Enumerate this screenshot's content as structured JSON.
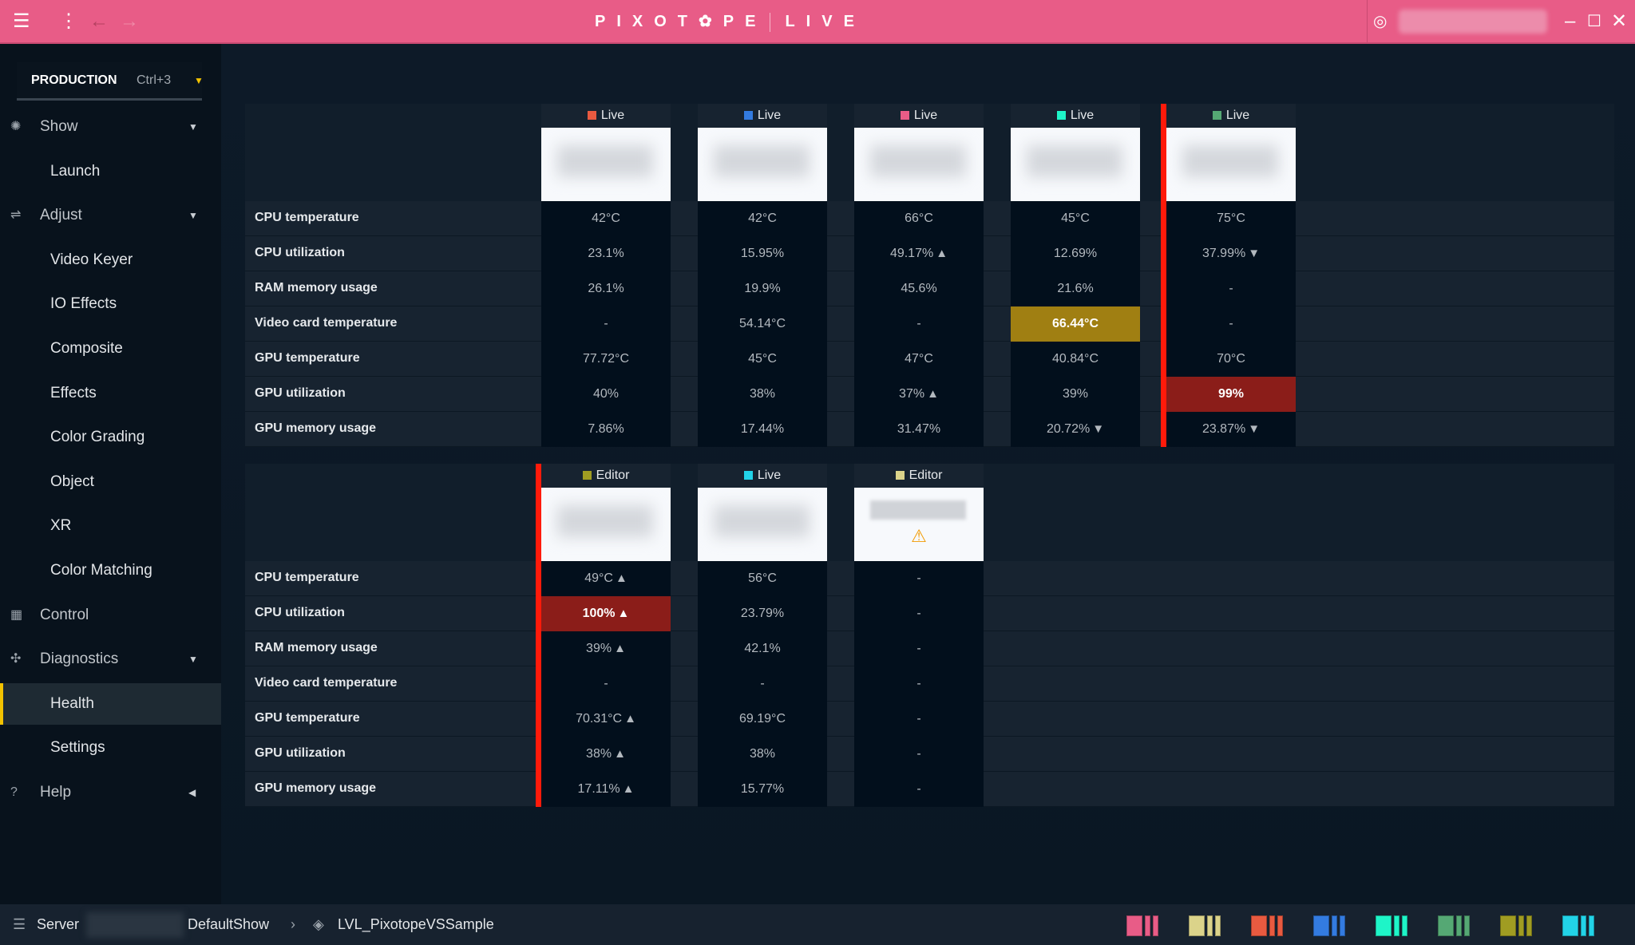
{
  "app": {
    "brand_left": "PIXOT",
    "brand_right": "PE",
    "brand_mode": "LIVE",
    "color": "#e85c87"
  },
  "workspace": {
    "label": "PRODUCTION",
    "shortcut": "Ctrl+3"
  },
  "sidebar": [
    {
      "label": "Show",
      "type": "top",
      "icon": "show-icon",
      "glyph": "✺",
      "arrow": "▼"
    },
    {
      "label": "Launch",
      "type": "sub"
    },
    {
      "label": "Adjust",
      "type": "top",
      "icon": "sliders-icon",
      "glyph": "⇌",
      "arrow": "▼"
    },
    {
      "label": "Video Keyer",
      "type": "sub"
    },
    {
      "label": "IO Effects",
      "type": "sub"
    },
    {
      "label": "Composite",
      "type": "sub"
    },
    {
      "label": "Effects",
      "type": "sub"
    },
    {
      "label": "Color Grading",
      "type": "sub"
    },
    {
      "label": "Object",
      "type": "sub"
    },
    {
      "label": "XR",
      "type": "sub"
    },
    {
      "label": "Color Matching",
      "type": "sub"
    },
    {
      "label": "Control",
      "type": "top",
      "icon": "grid-icon",
      "glyph": "▦"
    },
    {
      "label": "Diagnostics",
      "type": "top",
      "icon": "diagnostics-icon",
      "glyph": "✣",
      "arrow": "▼"
    },
    {
      "label": "Health",
      "type": "sub",
      "active": true
    },
    {
      "label": "Settings",
      "type": "sub"
    },
    {
      "label": "Help",
      "type": "top",
      "icon": "help-icon",
      "glyph": "?",
      "arrow": "◀"
    }
  ],
  "metrics": [
    "CPU temperature",
    "CPU utilization",
    "RAM memory usage",
    "Video card temperature",
    "GPU temperature",
    "GPU utilization",
    "GPU memory usage"
  ],
  "tables": [
    {
      "machines": [
        {
          "role": "Live",
          "color": "#e85a40",
          "values": [
            [
              "42°C"
            ],
            [
              "23.1%"
            ],
            [
              "26.1%"
            ],
            [
              "-"
            ],
            [
              "77.72°C"
            ],
            [
              "40%"
            ],
            [
              "7.86%"
            ]
          ]
        },
        {
          "role": "Live",
          "color": "#337be0",
          "values": [
            [
              "42°C"
            ],
            [
              "15.95%"
            ],
            [
              "19.9%"
            ],
            [
              "54.14°C"
            ],
            [
              "45°C"
            ],
            [
              "38%"
            ],
            [
              "17.44%"
            ]
          ]
        },
        {
          "role": "Live",
          "color": "#e85c87",
          "values": [
            [
              "66°C"
            ],
            [
              "49.17%",
              "up"
            ],
            [
              "45.6%"
            ],
            [
              "-"
            ],
            [
              "47°C"
            ],
            [
              "37%",
              "up"
            ],
            [
              "31.47%"
            ]
          ]
        },
        {
          "role": "Live",
          "color": "#1ef5c8",
          "values": [
            [
              "45°C"
            ],
            [
              "12.69%"
            ],
            [
              "21.6%"
            ],
            [
              "66.44°C",
              null,
              "warning"
            ],
            [
              "40.84°C"
            ],
            [
              "39%"
            ],
            [
              "20.72%",
              "down"
            ]
          ]
        },
        {
          "role": "Live",
          "color": "#55a874",
          "alert": true,
          "values": [
            [
              "75°C"
            ],
            [
              "37.99%",
              "down"
            ],
            [
              "-"
            ],
            [
              "-"
            ],
            [
              "70°C"
            ],
            [
              "99%",
              null,
              "critical"
            ],
            [
              "23.87%",
              "down"
            ]
          ]
        }
      ]
    },
    {
      "machines": [
        {
          "role": "Editor",
          "color": "#a09c22",
          "alert": true,
          "values": [
            [
              "49°C",
              "up"
            ],
            [
              "100%",
              "up",
              "critical"
            ],
            [
              "39%",
              "up"
            ],
            [
              "-"
            ],
            [
              "70.31°C",
              "up"
            ],
            [
              "38%",
              "up"
            ],
            [
              "17.11%",
              "up"
            ]
          ]
        },
        {
          "role": "Live",
          "color": "#22d3e8",
          "values": [
            [
              "56°C"
            ],
            [
              "23.79%"
            ],
            [
              "42.1%"
            ],
            [
              "-"
            ],
            [
              "69.19°C"
            ],
            [
              "38%"
            ],
            [
              "15.77%"
            ]
          ]
        },
        {
          "role": "Editor",
          "color": "#dbd38a",
          "warning_icon": true,
          "values": [
            [
              "-"
            ],
            [
              "-"
            ],
            [
              "-"
            ],
            [
              "-"
            ],
            [
              "-"
            ],
            [
              "-"
            ],
            [
              "-"
            ]
          ]
        }
      ]
    }
  ],
  "footer": {
    "server_label": "Server",
    "show": "DefaultShow",
    "level": "LVL_PixotopeVSSample"
  },
  "swatches": [
    "#e85c87",
    "#dbd38a",
    "#e85a40",
    "#337be0",
    "#1ef5c8",
    "#55a874",
    "#a09c22",
    "#22d3e8"
  ],
  "status_colors": {
    "warning": "#a07f12",
    "critical": "#8b1d19",
    "alert_bar": "#ff1a0a"
  }
}
